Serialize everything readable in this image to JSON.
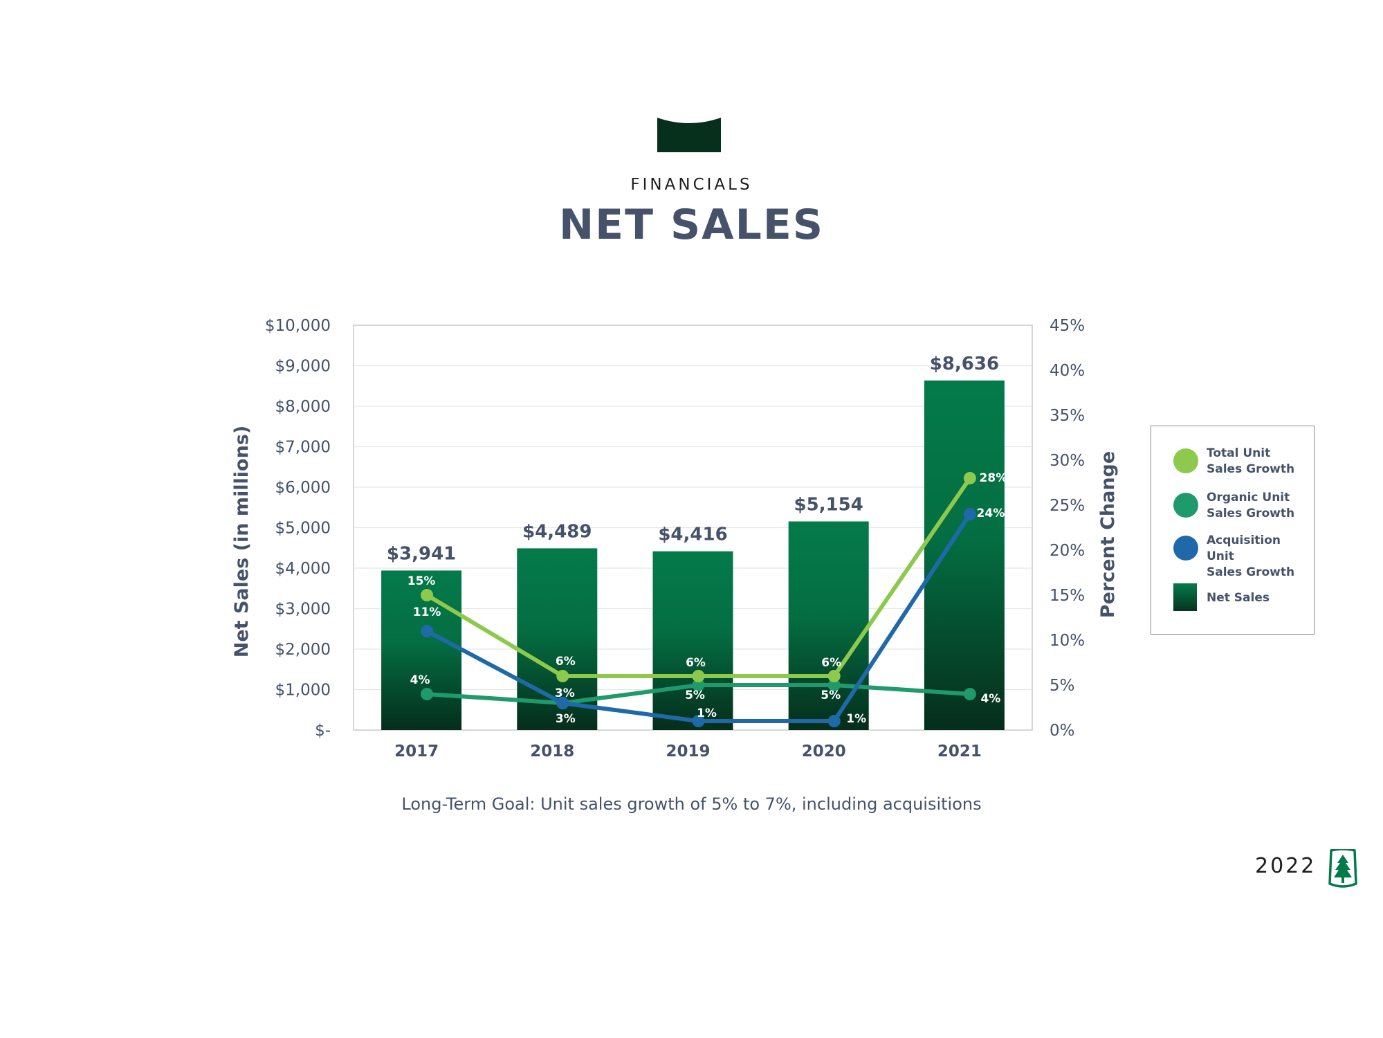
{
  "header": {
    "kicker": "FINANCIALS",
    "title": "NET SALES",
    "mark_color": "#062f1c"
  },
  "footnote": "Long-Term Goal: Unit sales growth of 5% to 7%, including acquisitions",
  "year": "2022",
  "logo": "tree-icon",
  "colors": {
    "bar_top": "#047a4a",
    "bar_bottom": "#063420",
    "total": "#8cc94d",
    "organic": "#1f9a6c",
    "acquisition": "#1f69a8",
    "text": "#45526a"
  },
  "legend": {
    "items": [
      {
        "label": "Total Unit\nSales Growth",
        "color": "#8cc94d",
        "shape": "circle"
      },
      {
        "label": "Organic Unit\nSales Growth",
        "color": "#1f9a6c",
        "shape": "circle"
      },
      {
        "label": "Acquisition Unit\nSales Growth",
        "color": "#1f69a8",
        "shape": "circle"
      },
      {
        "label": "Net Sales",
        "color": "#047a4a",
        "shape": "square"
      }
    ]
  },
  "chart_data": {
    "type": "bar",
    "categories": [
      "2017",
      "2018",
      "2019",
      "2020",
      "2021"
    ],
    "ylabel": "Net Sales  (in millions)",
    "y2label": "Percent Change",
    "ylim": [
      0,
      10000
    ],
    "y2lim": [
      0,
      45
    ],
    "yticks": [
      "$-",
      "$1,000",
      "$2,000",
      "$3,000",
      "$4,000",
      "$5,000",
      "$6,000",
      "$7,000",
      "$8,000",
      "$9,000",
      "$10,000"
    ],
    "y2ticks": [
      "0%",
      "5%",
      "10%",
      "15%",
      "20%",
      "25%",
      "30%",
      "35%",
      "40%",
      "45%"
    ],
    "grid": true,
    "legend_position": "right",
    "bars": {
      "name": "Net Sales",
      "values": [
        3941,
        4489,
        4416,
        5154,
        8636
      ],
      "labels": [
        "$3,941",
        "$4,489",
        "$4,416",
        "$5,154",
        "$8,636"
      ]
    },
    "series": [
      {
        "name": "Total Unit Sales Growth",
        "axis": "right",
        "values": [
          15,
          6,
          6,
          6,
          28
        ],
        "labels": [
          "15%",
          "6%",
          "6%",
          "6%",
          "28%"
        ]
      },
      {
        "name": "Organic Unit Sales Growth",
        "axis": "right",
        "values": [
          4,
          3,
          5,
          5,
          4
        ],
        "labels": [
          "4%",
          "3%",
          "5%",
          "5%",
          "4%"
        ]
      },
      {
        "name": "Acquisition Unit Sales Growth",
        "axis": "right",
        "values": [
          11,
          3,
          1,
          1,
          24
        ],
        "labels": [
          "11%",
          "3%",
          "1%",
          "1%",
          "24%"
        ]
      }
    ]
  }
}
